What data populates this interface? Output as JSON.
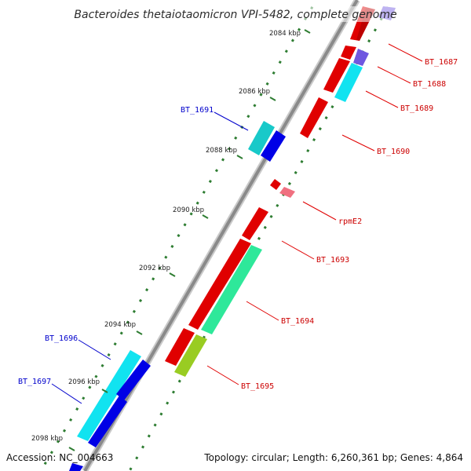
{
  "title": "Bacteroides thetaiotaomicron VPI-5482, complete genome",
  "accession": "Accession: NC_004663",
  "topology": "Topology: circular; Length: 6,260,361 bp; Genes: 4,864",
  "colors": {
    "backbone": "#8a8a8a",
    "tick_green": "#2e7d32",
    "forward_red": "#e00000",
    "blue": "#0000e6",
    "cyan": "#11e3f0",
    "teal": "#18c9c9",
    "green_teal": "#2ee89a",
    "yellow_green": "#99cc22",
    "purple": "#6f57e0",
    "pink": "#f07080",
    "label_red": "#cc0000",
    "label_blue": "#0000cc"
  },
  "scale_labels": [
    "2084 kbp",
    "2086 kbp",
    "2088 kbp",
    "2090 kbp",
    "2092 kbp",
    "2094 kbp",
    "2096 kbp",
    "2098 kbp"
  ],
  "gene_labels": {
    "BT_1687": "BT_1687",
    "BT_1688": "BT_1688",
    "BT_1689": "BT_1689",
    "BT_1690": "BT_1690",
    "rpmE2": "rpmE2",
    "BT_1693": "BT_1693",
    "BT_1694": "BT_1694",
    "BT_1695": "BT_1695",
    "BT_1691": "BT_1691",
    "BT_1696": "BT_1696",
    "BT_1697": "BT_1697"
  }
}
